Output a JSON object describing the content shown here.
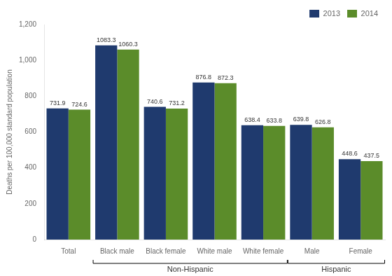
{
  "chart_data": {
    "type": "bar",
    "categories": [
      "Total",
      "Black male",
      "Black female",
      "White male",
      "White female",
      "Male",
      "Female"
    ],
    "series": [
      {
        "name": "2013",
        "color": "#1f3a6e",
        "values": [
          731.9,
          1083.3,
          740.6,
          876.8,
          638.4,
          639.8,
          448.6
        ]
      },
      {
        "name": "2014",
        "color": "#5b8c2a",
        "values": [
          724.6,
          1060.3,
          731.2,
          872.3,
          633.8,
          626.8,
          437.5
        ]
      }
    ],
    "ylabel": "Deaths per 100,000 standard population",
    "ylim": [
      0,
      1200
    ],
    "yticks": [
      0,
      200,
      400,
      600,
      800,
      {
        "value": 1000,
        "label": "1,000"
      },
      {
        "value": 1200,
        "label": "1,200"
      }
    ],
    "annotations": [
      {
        "text": "Non-Hispanic",
        "from": "Black male",
        "to": "White female"
      },
      {
        "text": "Hispanic",
        "from": "Male",
        "to": "Female"
      }
    ],
    "data_labels": true,
    "grid": false,
    "legend": "upper right"
  }
}
